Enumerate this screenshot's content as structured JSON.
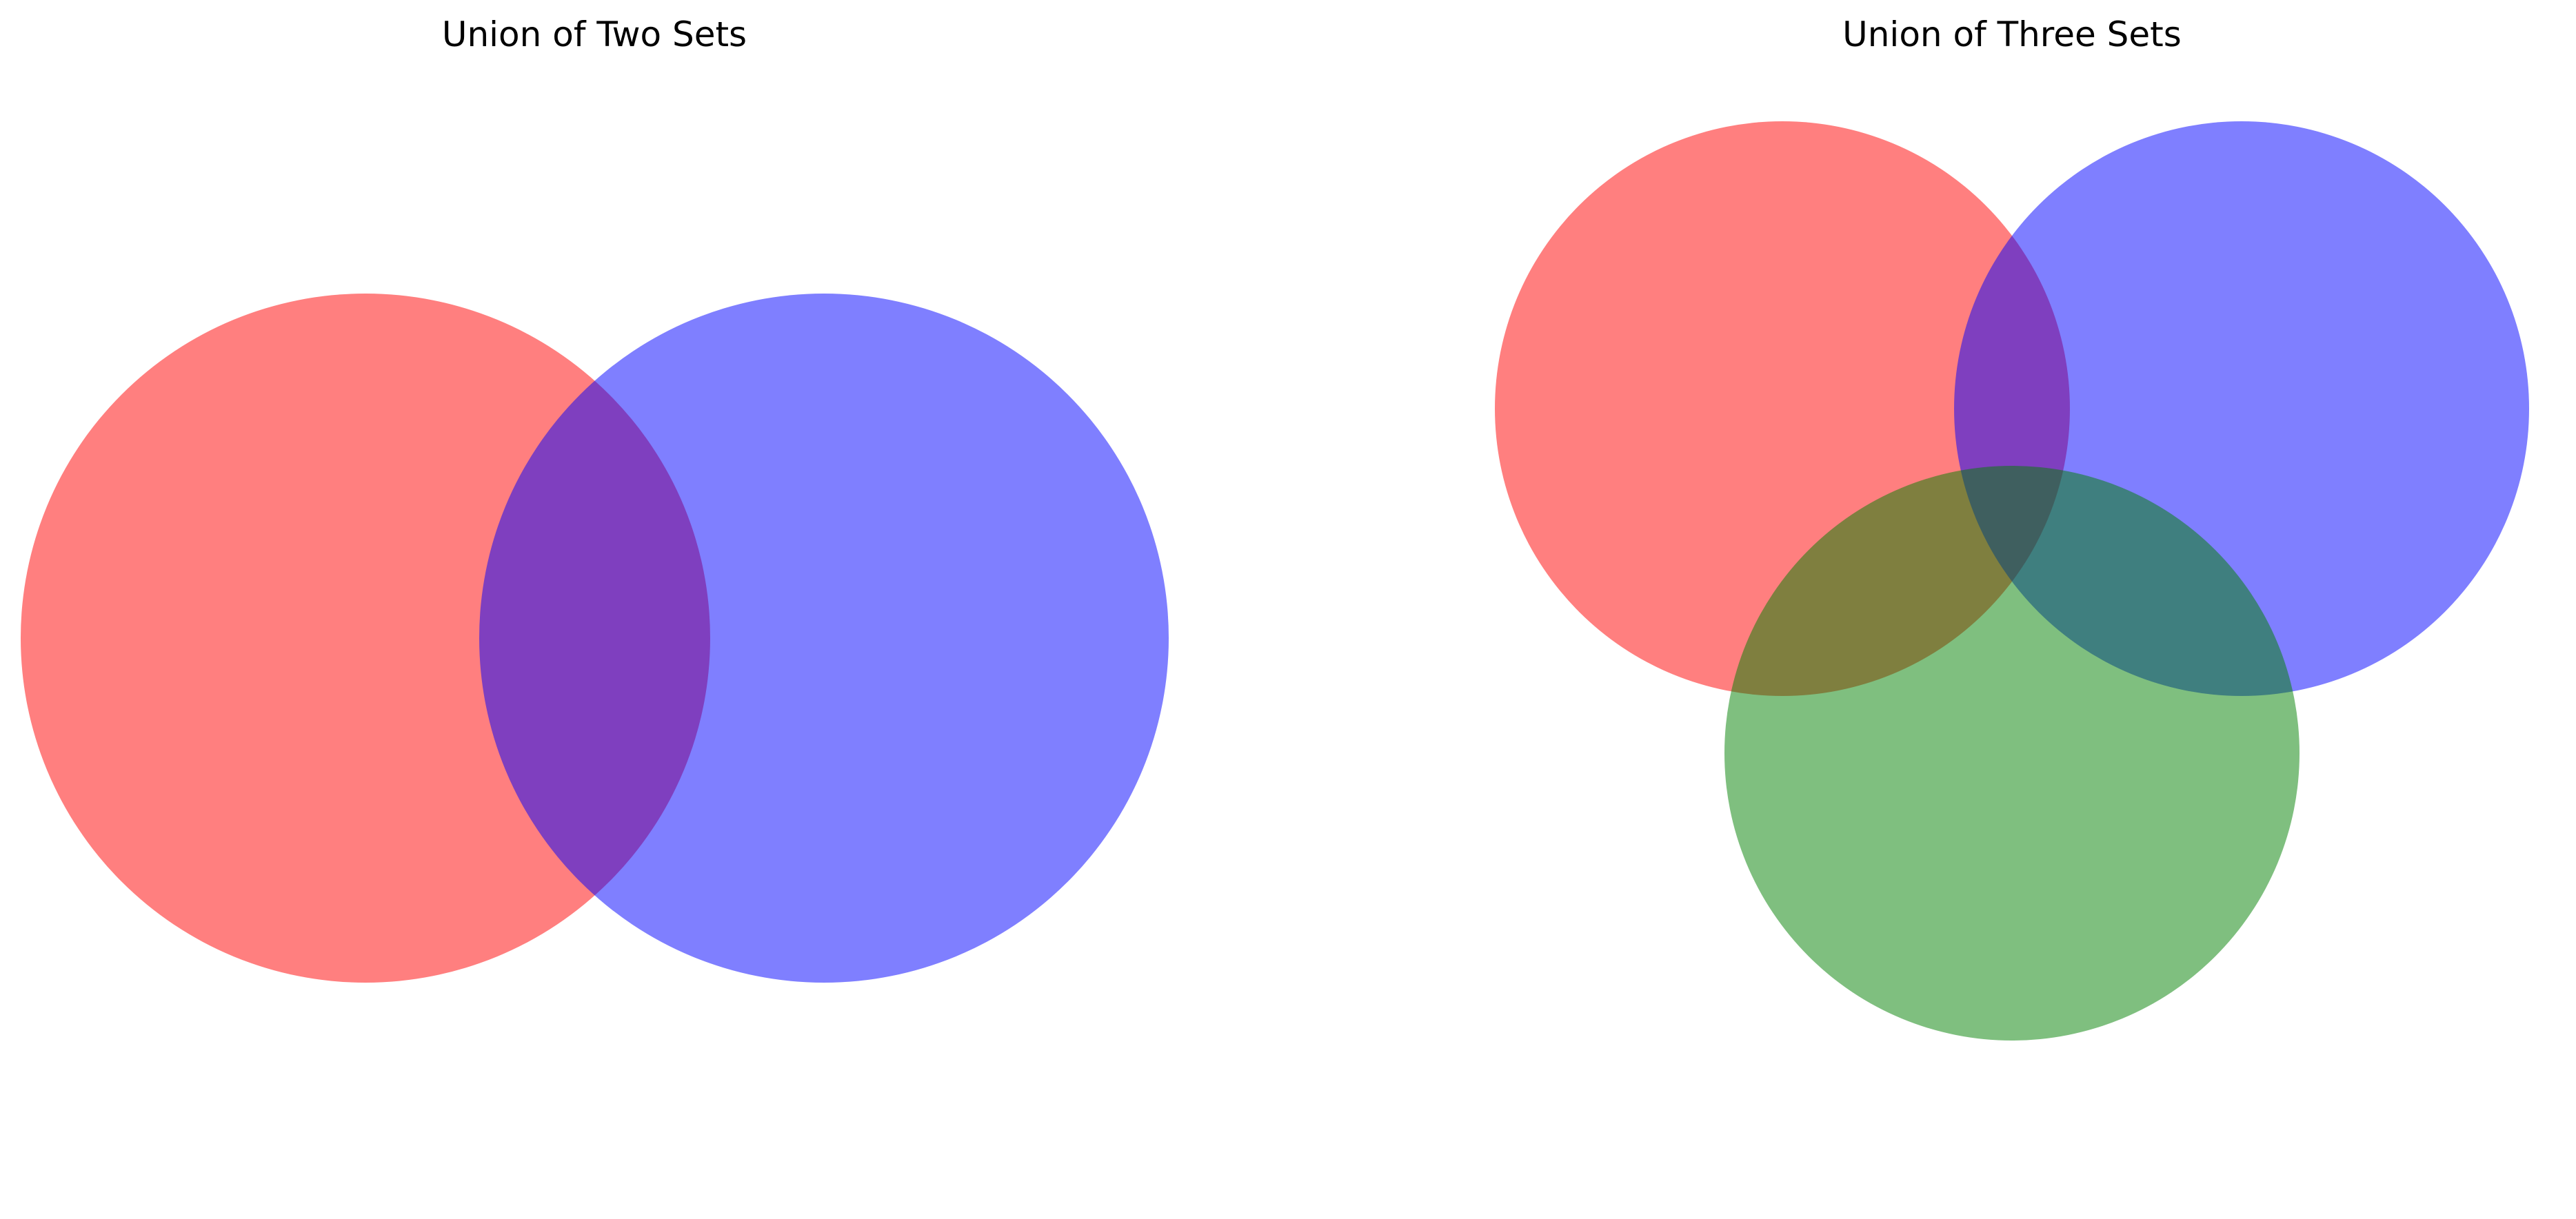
{
  "figure": {
    "panels": [
      {
        "title": "Union of Two Sets",
        "circles": [
          {
            "color": "#ff0000",
            "opacity": 0.5
          },
          {
            "color": "#0000ff",
            "opacity": 0.5
          }
        ]
      },
      {
        "title": "Union of Three Sets",
        "circles": [
          {
            "color": "#ff0000",
            "opacity": 0.5
          },
          {
            "color": "#0000ff",
            "opacity": 0.5
          },
          {
            "color": "#008000",
            "opacity": 0.5
          }
        ]
      }
    ]
  }
}
